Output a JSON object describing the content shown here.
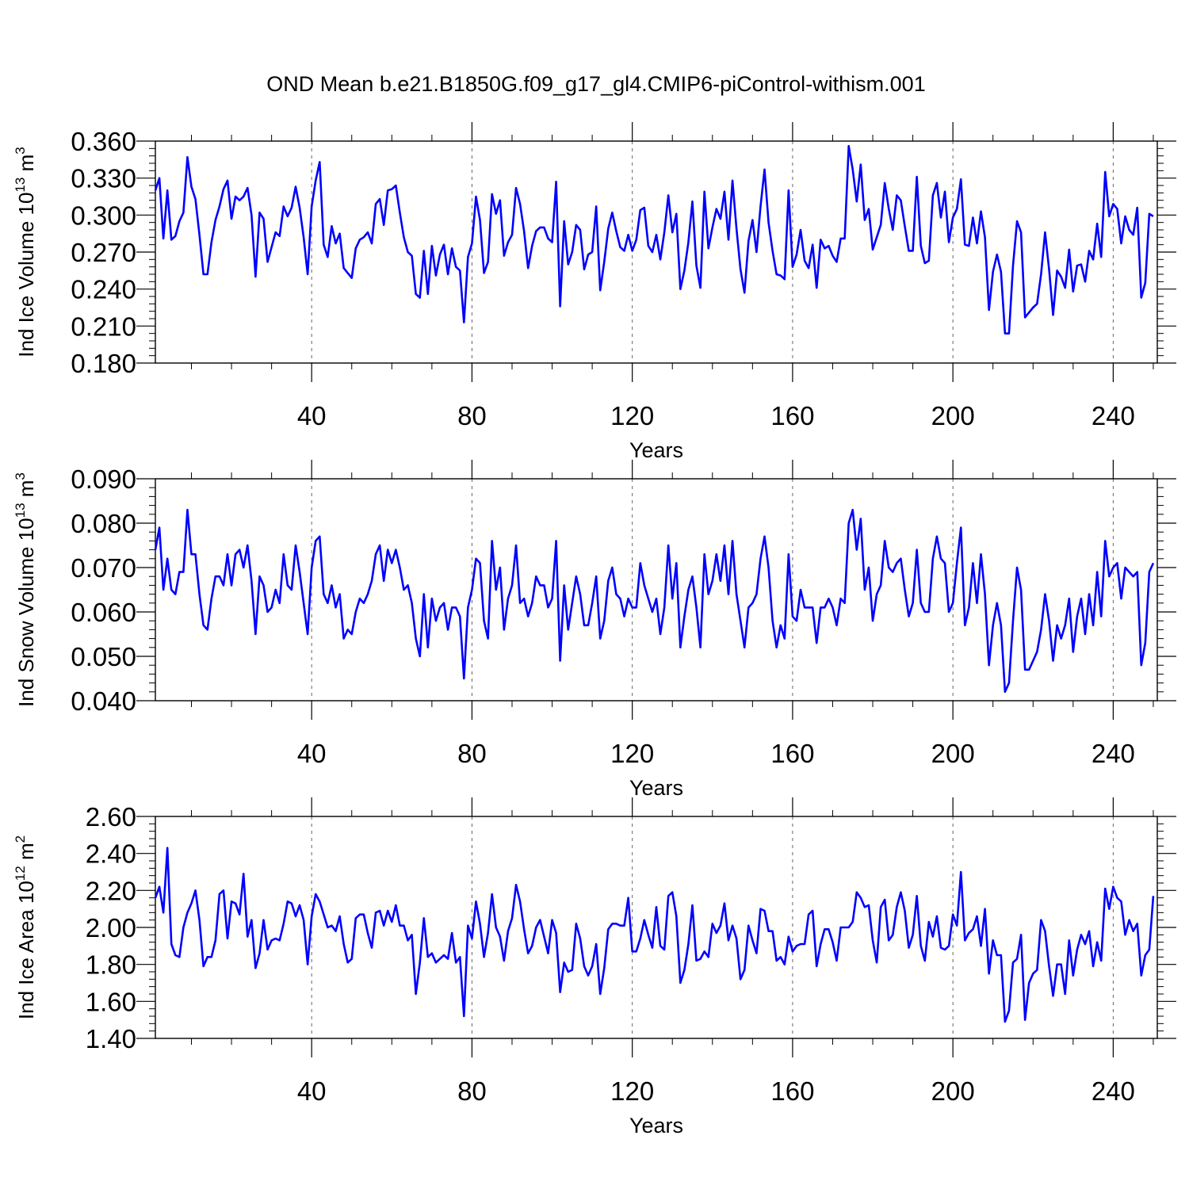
{
  "title": "OND Mean b.e21.B1850G.f09_g17_gl4.CMIP6-piControl-withism.001",
  "colors": {
    "line": "#0000ff",
    "axis": "#000000",
    "grid": "#666666"
  },
  "chart_data": [
    {
      "type": "line",
      "series_name": "Ind Ice Volume",
      "ylabel_main": "Ind Ice Volume 10",
      "ylabel_exp": "13",
      "ylabel_unit": " m",
      "ylabel_unit_exp": "3",
      "xlabel": "Years",
      "xlim": [
        1,
        251
      ],
      "ylim": [
        0.18,
        0.36
      ],
      "xticks": [
        40,
        80,
        120,
        160,
        200,
        240
      ],
      "xtick_labels": [
        "40",
        "80",
        "120",
        "160",
        "200",
        "240"
      ],
      "yticks": [
        0.18,
        0.21,
        0.24,
        0.27,
        0.3,
        0.33,
        0.36
      ],
      "ytick_labels": [
        "0.180",
        "0.210",
        "0.240",
        "0.270",
        "0.300",
        "0.330",
        "0.360"
      ],
      "x_start": 1,
      "values": [
        0.32,
        0.33,
        0.281,
        0.32,
        0.28,
        0.283,
        0.295,
        0.302,
        0.347,
        0.323,
        0.313,
        0.284,
        0.252,
        0.252,
        0.278,
        0.296,
        0.307,
        0.321,
        0.328,
        0.297,
        0.315,
        0.312,
        0.315,
        0.322,
        0.3,
        0.25,
        0.302,
        0.297,
        0.262,
        0.274,
        0.286,
        0.283,
        0.307,
        0.299,
        0.306,
        0.323,
        0.306,
        0.282,
        0.252,
        0.307,
        0.328,
        0.343,
        0.276,
        0.266,
        0.291,
        0.277,
        0.285,
        0.257,
        0.253,
        0.249,
        0.273,
        0.28,
        0.282,
        0.286,
        0.277,
        0.309,
        0.313,
        0.292,
        0.32,
        0.321,
        0.324,
        0.302,
        0.282,
        0.27,
        0.267,
        0.236,
        0.233,
        0.271,
        0.236,
        0.275,
        0.251,
        0.268,
        0.276,
        0.252,
        0.273,
        0.258,
        0.255,
        0.213,
        0.266,
        0.277,
        0.315,
        0.296,
        0.253,
        0.262,
        0.317,
        0.301,
        0.312,
        0.267,
        0.278,
        0.284,
        0.322,
        0.309,
        0.287,
        0.257,
        0.275,
        0.287,
        0.29,
        0.29,
        0.281,
        0.278,
        0.327,
        0.226,
        0.295,
        0.26,
        0.27,
        0.292,
        0.288,
        0.256,
        0.268,
        0.27,
        0.307,
        0.239,
        0.262,
        0.289,
        0.302,
        0.287,
        0.274,
        0.271,
        0.284,
        0.271,
        0.28,
        0.304,
        0.306,
        0.275,
        0.27,
        0.284,
        0.264,
        0.286,
        0.316,
        0.286,
        0.301,
        0.24,
        0.255,
        0.278,
        0.311,
        0.259,
        0.241,
        0.319,
        0.273,
        0.29,
        0.305,
        0.297,
        0.319,
        0.28,
        0.328,
        0.289,
        0.256,
        0.237,
        0.279,
        0.296,
        0.27,
        0.307,
        0.337,
        0.294,
        0.271,
        0.252,
        0.251,
        0.248,
        0.32,
        0.258,
        0.268,
        0.288,
        0.263,
        0.257,
        0.276,
        0.241,
        0.28,
        0.273,
        0.275,
        0.267,
        0.262,
        0.281,
        0.281,
        0.356,
        0.337,
        0.311,
        0.341,
        0.296,
        0.305,
        0.272,
        0.282,
        0.292,
        0.326,
        0.305,
        0.288,
        0.316,
        0.312,
        0.291,
        0.271,
        0.271,
        0.331,
        0.275,
        0.261,
        0.263,
        0.316,
        0.326,
        0.298,
        0.319,
        0.278,
        0.298,
        0.305,
        0.329,
        0.276,
        0.275,
        0.298,
        0.277,
        0.303,
        0.282,
        0.223,
        0.254,
        0.268,
        0.254,
        0.204,
        0.204,
        0.259,
        0.295,
        0.286,
        0.217,
        0.221,
        0.225,
        0.228,
        0.252,
        0.286,
        0.256,
        0.219,
        0.255,
        0.25,
        0.241,
        0.272,
        0.238,
        0.259,
        0.26,
        0.246,
        0.271,
        0.264,
        0.293,
        0.266,
        0.335,
        0.299,
        0.309,
        0.305,
        0.277,
        0.299,
        0.288,
        0.284,
        0.306,
        0.233,
        0.245,
        0.301,
        0.299
      ]
    },
    {
      "type": "line",
      "series_name": "Ind Snow Volume",
      "ylabel_main": "Ind Snow Volume 10",
      "ylabel_exp": "13",
      "ylabel_unit": " m",
      "ylabel_unit_exp": "3",
      "xlabel": "Years",
      "xlim": [
        1,
        251
      ],
      "ylim": [
        0.04,
        0.09
      ],
      "xticks": [
        40,
        80,
        120,
        160,
        200,
        240
      ],
      "xtick_labels": [
        "40",
        "80",
        "120",
        "160",
        "200",
        "240"
      ],
      "yticks": [
        0.04,
        0.05,
        0.06,
        0.07,
        0.08,
        0.09
      ],
      "ytick_labels": [
        "0.040",
        "0.050",
        "0.060",
        "0.070",
        "0.080",
        "0.090"
      ],
      "x_start": 1,
      "values": [
        0.074,
        0.079,
        0.065,
        0.072,
        0.065,
        0.064,
        0.069,
        0.069,
        0.083,
        0.073,
        0.073,
        0.064,
        0.057,
        0.056,
        0.063,
        0.068,
        0.068,
        0.066,
        0.073,
        0.066,
        0.073,
        0.074,
        0.07,
        0.075,
        0.067,
        0.055,
        0.068,
        0.066,
        0.06,
        0.061,
        0.065,
        0.062,
        0.073,
        0.066,
        0.065,
        0.075,
        0.069,
        0.062,
        0.055,
        0.07,
        0.076,
        0.077,
        0.064,
        0.062,
        0.066,
        0.061,
        0.064,
        0.054,
        0.056,
        0.055,
        0.06,
        0.063,
        0.062,
        0.064,
        0.067,
        0.073,
        0.075,
        0.067,
        0.074,
        0.071,
        0.074,
        0.07,
        0.065,
        0.066,
        0.062,
        0.054,
        0.05,
        0.064,
        0.052,
        0.063,
        0.058,
        0.061,
        0.062,
        0.056,
        0.061,
        0.061,
        0.059,
        0.045,
        0.061,
        0.065,
        0.072,
        0.071,
        0.058,
        0.054,
        0.076,
        0.065,
        0.07,
        0.056,
        0.063,
        0.066,
        0.075,
        0.062,
        0.063,
        0.059,
        0.062,
        0.068,
        0.066,
        0.066,
        0.061,
        0.063,
        0.076,
        0.049,
        0.066,
        0.056,
        0.062,
        0.068,
        0.064,
        0.057,
        0.057,
        0.062,
        0.068,
        0.054,
        0.058,
        0.067,
        0.07,
        0.064,
        0.063,
        0.059,
        0.063,
        0.061,
        0.061,
        0.071,
        0.066,
        0.063,
        0.06,
        0.063,
        0.055,
        0.061,
        0.075,
        0.063,
        0.071,
        0.052,
        0.059,
        0.065,
        0.068,
        0.061,
        0.052,
        0.073,
        0.064,
        0.067,
        0.073,
        0.067,
        0.075,
        0.064,
        0.076,
        0.064,
        0.058,
        0.052,
        0.061,
        0.062,
        0.064,
        0.072,
        0.077,
        0.07,
        0.058,
        0.052,
        0.057,
        0.054,
        0.073,
        0.059,
        0.058,
        0.065,
        0.061,
        0.061,
        0.061,
        0.053,
        0.061,
        0.061,
        0.063,
        0.061,
        0.057,
        0.063,
        0.062,
        0.08,
        0.083,
        0.074,
        0.081,
        0.065,
        0.07,
        0.058,
        0.064,
        0.066,
        0.076,
        0.07,
        0.069,
        0.071,
        0.072,
        0.065,
        0.059,
        0.062,
        0.074,
        0.062,
        0.06,
        0.06,
        0.072,
        0.077,
        0.072,
        0.071,
        0.06,
        0.062,
        0.071,
        0.079,
        0.057,
        0.061,
        0.071,
        0.062,
        0.073,
        0.064,
        0.048,
        0.057,
        0.062,
        0.057,
        0.042,
        0.044,
        0.058,
        0.07,
        0.065,
        0.047,
        0.047,
        0.049,
        0.051,
        0.056,
        0.064,
        0.058,
        0.049,
        0.057,
        0.054,
        0.057,
        0.063,
        0.051,
        0.059,
        0.063,
        0.055,
        0.064,
        0.057,
        0.069,
        0.059,
        0.076,
        0.068,
        0.07,
        0.071,
        0.063,
        0.07,
        0.069,
        0.068,
        0.069,
        0.048,
        0.053,
        0.069,
        0.071
      ]
    },
    {
      "type": "line",
      "series_name": "Ind Ice Area",
      "ylabel_main": "Ind Ice Area 10",
      "ylabel_exp": "12",
      "ylabel_unit": " m",
      "ylabel_unit_exp": "2",
      "xlabel": "Years",
      "xlim": [
        1,
        251
      ],
      "ylim": [
        1.4,
        2.6
      ],
      "xticks": [
        40,
        80,
        120,
        160,
        200,
        240
      ],
      "xtick_labels": [
        "40",
        "80",
        "120",
        "160",
        "200",
        "240"
      ],
      "yticks": [
        1.4,
        1.6,
        1.8,
        2.0,
        2.2,
        2.4,
        2.6
      ],
      "ytick_labels": [
        "1.40",
        "1.60",
        "1.80",
        "2.00",
        "2.20",
        "2.40",
        "2.60"
      ],
      "x_start": 1,
      "values": [
        2.16,
        2.22,
        2.08,
        2.43,
        1.91,
        1.85,
        1.84,
        2.0,
        2.08,
        2.13,
        2.2,
        2.04,
        1.79,
        1.84,
        1.84,
        1.93,
        2.18,
        2.2,
        1.94,
        2.14,
        2.13,
        2.07,
        2.29,
        1.95,
        2.04,
        1.78,
        1.86,
        2.04,
        1.88,
        1.93,
        1.94,
        1.93,
        2.02,
        2.14,
        2.13,
        2.06,
        2.12,
        2.04,
        1.8,
        2.06,
        2.18,
        2.14,
        2.07,
        2.0,
        2.01,
        1.98,
        2.06,
        1.91,
        1.81,
        1.83,
        2.05,
        2.07,
        2.07,
        1.97,
        1.89,
        2.08,
        2.09,
        2.01,
        2.09,
        2.03,
        2.12,
        2.01,
        2.01,
        1.93,
        1.96,
        1.64,
        1.81,
        2.05,
        1.84,
        1.86,
        1.81,
        1.83,
        1.85,
        1.83,
        1.97,
        1.81,
        1.84,
        1.52,
        2.01,
        1.94,
        2.14,
        2.02,
        1.84,
        1.97,
        2.18,
        2.0,
        1.95,
        1.82,
        1.98,
        2.05,
        2.23,
        2.14,
        1.99,
        1.86,
        1.9,
        2.0,
        2.04,
        1.95,
        1.86,
        2.04,
        1.97,
        1.65,
        1.81,
        1.76,
        1.77,
        2.02,
        1.94,
        1.79,
        1.74,
        1.79,
        1.91,
        1.64,
        1.78,
        1.99,
        2.02,
        2.02,
        2.01,
        2.01,
        2.16,
        1.87,
        1.87,
        1.94,
        2.04,
        1.96,
        1.89,
        2.11,
        1.9,
        1.88,
        2.17,
        2.19,
        2.06,
        1.7,
        1.77,
        1.91,
        2.12,
        1.82,
        1.83,
        1.87,
        1.84,
        2.02,
        1.97,
        2.01,
        2.13,
        1.93,
        2.01,
        1.94,
        1.72,
        1.77,
        2.01,
        1.93,
        1.86,
        2.1,
        2.09,
        1.98,
        1.98,
        1.82,
        1.84,
        1.8,
        1.95,
        1.87,
        1.9,
        1.91,
        1.91,
        2.07,
        2.09,
        1.79,
        1.91,
        1.99,
        1.99,
        1.92,
        1.82,
        2.0,
        2.0,
        2.0,
        2.03,
        2.19,
        2.16,
        2.11,
        2.12,
        1.93,
        1.81,
        2.11,
        2.15,
        1.93,
        1.96,
        2.11,
        2.19,
        2.09,
        1.89,
        1.96,
        2.17,
        1.9,
        1.82,
        2.03,
        1.95,
        2.06,
        1.89,
        1.88,
        1.9,
        2.07,
        2.01,
        2.3,
        1.93,
        1.97,
        1.99,
        2.06,
        1.9,
        2.1,
        1.75,
        1.93,
        1.85,
        1.85,
        1.49,
        1.55,
        1.81,
        1.83,
        1.96,
        1.5,
        1.7,
        1.75,
        1.77,
        2.04,
        1.98,
        1.79,
        1.63,
        1.8,
        1.8,
        1.64,
        1.93,
        1.74,
        1.88,
        1.96,
        1.91,
        1.98,
        1.79,
        1.92,
        1.82,
        2.21,
        2.1,
        2.22,
        2.16,
        2.14,
        1.96,
        2.04,
        1.98,
        2.02,
        1.74,
        1.85,
        1.88,
        2.17
      ]
    }
  ]
}
